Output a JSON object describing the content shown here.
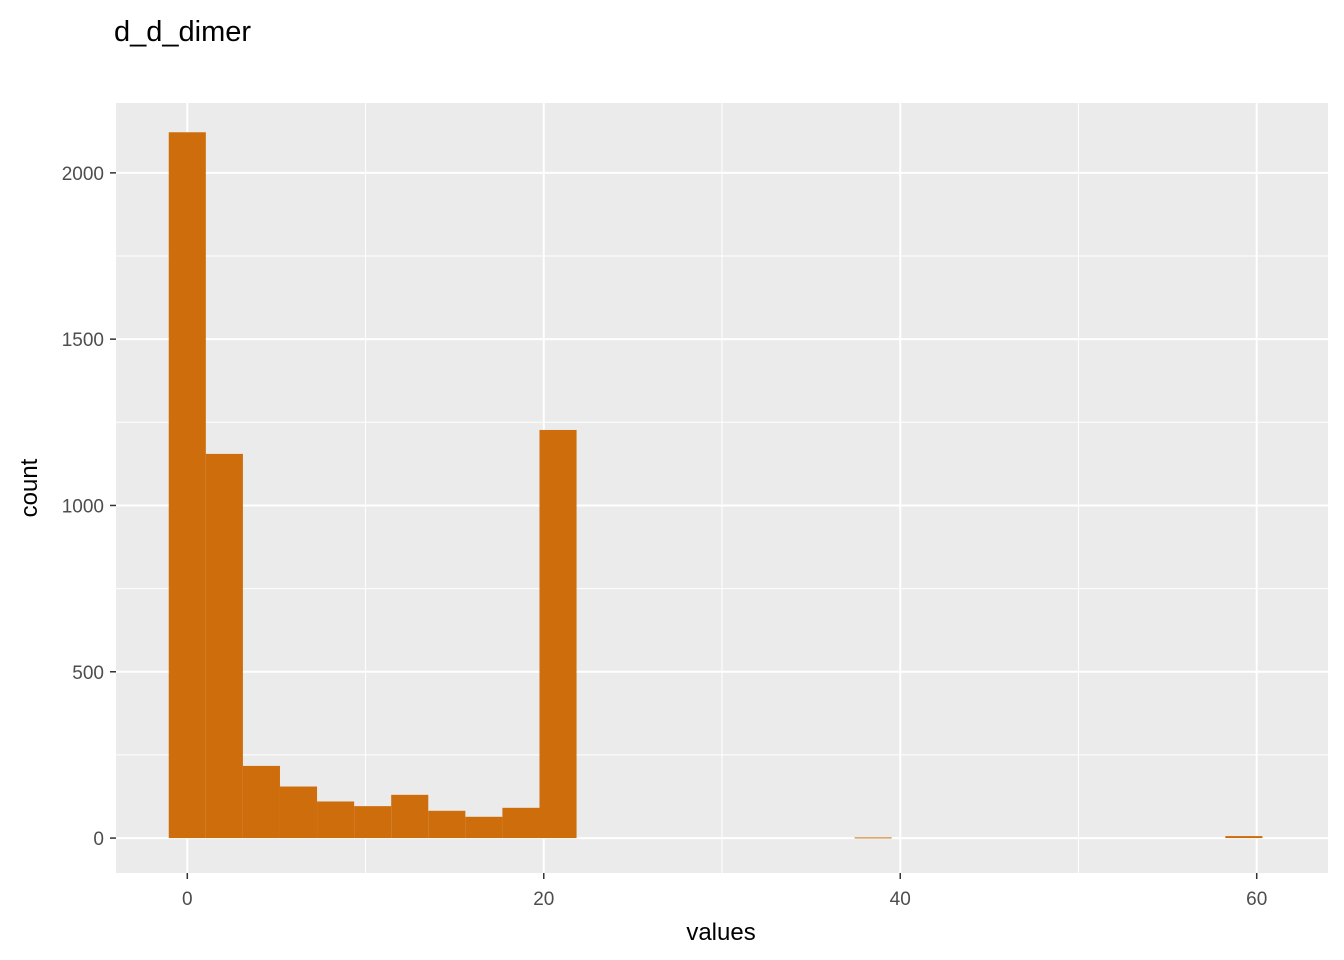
{
  "chart_data": {
    "type": "bar",
    "title": "d_d_dimer",
    "xlabel": "values",
    "ylabel": "count",
    "bar_color": "#CE6D0B",
    "panel_color": "#EBEBEB",
    "grid": true,
    "xlim": [
      -4,
      64
    ],
    "ylim": [
      -105,
      2210
    ],
    "x_ticks": [
      0,
      20,
      40,
      60
    ],
    "x_minor_ticks": [
      10,
      30,
      50
    ],
    "y_ticks": [
      0,
      500,
      1000,
      1500,
      2000
    ],
    "y_minor_ticks": [
      250,
      750,
      1250,
      1750
    ],
    "bins": [
      {
        "x0": -1.04,
        "x1": 1.04,
        "count": 2122
      },
      {
        "x0": 1.04,
        "x1": 3.12,
        "count": 1155
      },
      {
        "x0": 3.12,
        "x1": 5.2,
        "count": 217
      },
      {
        "x0": 5.2,
        "x1": 7.28,
        "count": 155
      },
      {
        "x0": 7.28,
        "x1": 9.36,
        "count": 110
      },
      {
        "x0": 9.36,
        "x1": 11.44,
        "count": 96
      },
      {
        "x0": 11.44,
        "x1": 13.52,
        "count": 130
      },
      {
        "x0": 13.52,
        "x1": 15.6,
        "count": 82
      },
      {
        "x0": 15.6,
        "x1": 17.68,
        "count": 64
      },
      {
        "x0": 17.68,
        "x1": 19.76,
        "count": 91
      },
      {
        "x0": 19.76,
        "x1": 21.84,
        "count": 1227
      },
      {
        "x0": 37.44,
        "x1": 39.52,
        "count": 2
      },
      {
        "x0": 58.24,
        "x1": 60.32,
        "count": 6
      }
    ]
  }
}
